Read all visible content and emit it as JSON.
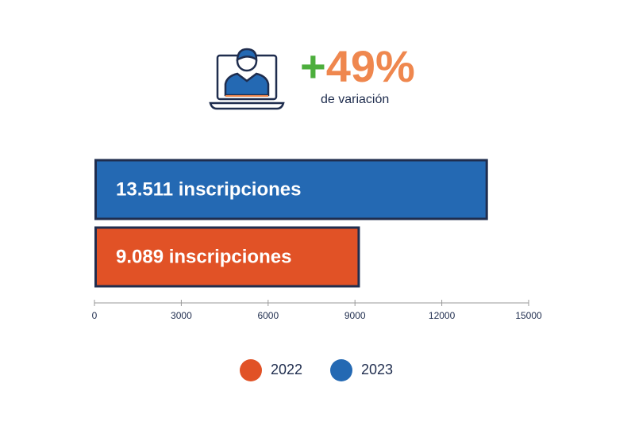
{
  "chart_data": {
    "type": "bar",
    "orientation": "horizontal",
    "headline": {
      "sign": "+",
      "value": "49%",
      "caption": "de variación",
      "sign_color": "#4cae3c",
      "value_color": "#ef874e"
    },
    "categories": [
      null
    ],
    "series": [
      {
        "name": "2022",
        "color": "#e15226",
        "values": [
          9089
        ],
        "value_labels": [
          "9.089 inscripciones"
        ]
      },
      {
        "name": "2023",
        "color": "#2469b3",
        "values": [
          13511
        ],
        "value_labels": [
          "13.511 inscripciones"
        ]
      }
    ],
    "xlim": [
      0,
      15000
    ],
    "xticks": [
      0,
      3000,
      6000,
      9000,
      12000,
      15000
    ],
    "legend": "bottom"
  }
}
